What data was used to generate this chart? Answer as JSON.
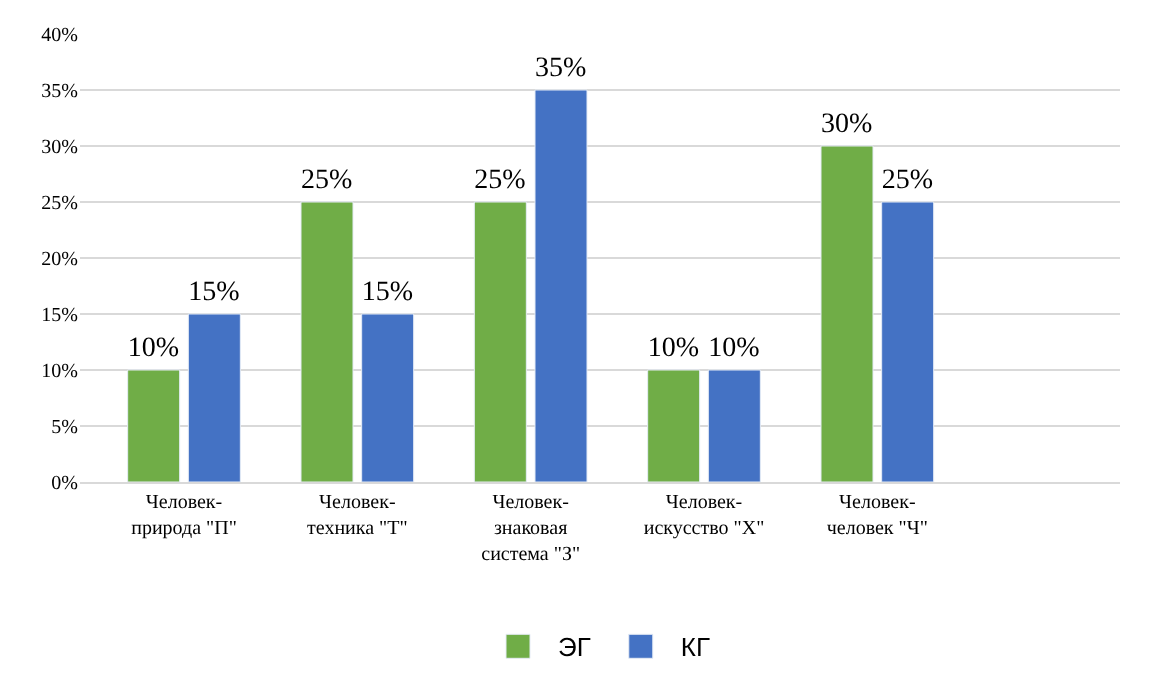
{
  "chart_data": {
    "type": "bar",
    "categories": [
      "Человек-\nприрода \"П\"",
      "Человек-\nтехника \"Т\"",
      "Человек-\nзнаковая\nсистема \"З\"",
      "Человек-\nискусство \"Х\"",
      "Человек-\nчеловек \"Ч\""
    ],
    "series": [
      {
        "name": "ЭГ",
        "color": "#70ad47",
        "values": [
          10,
          25,
          25,
          10,
          30
        ],
        "value_labels": [
          "10%",
          "25%",
          "25%",
          "10%",
          "30%"
        ]
      },
      {
        "name": "КГ",
        "color": "#4472c4",
        "values": [
          15,
          15,
          35,
          10,
          25
        ],
        "value_labels": [
          "15%",
          "15%",
          "35%",
          "10%",
          "25%"
        ]
      }
    ],
    "ylim": [
      0,
      40
    ],
    "yticks": [
      {
        "value": 0,
        "label": "0%"
      },
      {
        "value": 5,
        "label": "5%"
      },
      {
        "value": 10,
        "label": "10%"
      },
      {
        "value": 15,
        "label": "15%"
      },
      {
        "value": 20,
        "label": "20%"
      },
      {
        "value": 25,
        "label": "25%"
      },
      {
        "value": 30,
        "label": "30%"
      },
      {
        "value": 35,
        "label": "35%"
      },
      {
        "value": 40,
        "label": "40%"
      }
    ],
    "grid": "y",
    "legend": "bottom"
  }
}
